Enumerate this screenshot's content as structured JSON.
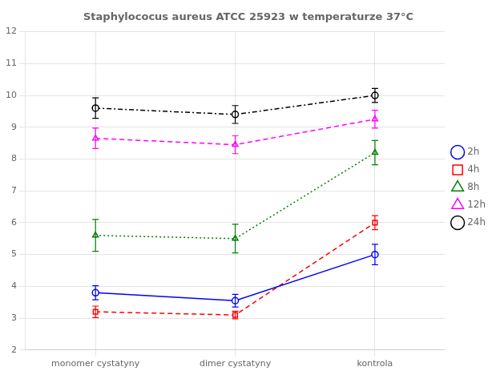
{
  "chart_data": {
    "type": "line",
    "title": "Staphylococus aureus ATCC 25923 w temperaturze 37°C",
    "categories": [
      "monomer cystatyny",
      "dimer cystatyny",
      "kontrola"
    ],
    "series": [
      {
        "name": "2h",
        "color": "#0000FF",
        "marker": "circle",
        "line_style": "solid",
        "values": [
          3.8,
          3.55,
          5.0
        ],
        "errors": [
          0.22,
          0.2,
          0.32
        ]
      },
      {
        "name": "4h",
        "color": "#FF0000",
        "marker": "square",
        "line_style": "dashed",
        "values": [
          3.2,
          3.1,
          6.0
        ],
        "errors": [
          0.18,
          0.12,
          0.22
        ]
      },
      {
        "name": "8h",
        "color": "#008000",
        "marker": "triangle",
        "line_style": "dotted",
        "values": [
          5.6,
          5.5,
          8.2
        ],
        "errors": [
          0.5,
          0.45,
          0.38
        ]
      },
      {
        "name": "12h",
        "color": "#FF00FF",
        "marker": "triangle",
        "line_style": "dashed",
        "values": [
          8.65,
          8.45,
          9.25
        ],
        "errors": [
          0.32,
          0.28,
          0.28
        ]
      },
      {
        "name": "24h",
        "color": "#000000",
        "marker": "circle",
        "line_style": "dashdot",
        "values": [
          9.6,
          9.4,
          10.0
        ],
        "errors": [
          0.32,
          0.28,
          0.22
        ]
      }
    ],
    "ylim": [
      2,
      12
    ],
    "yticks": [
      2,
      3,
      4,
      5,
      6,
      7,
      8,
      9,
      10,
      11,
      12
    ],
    "grid": true,
    "legend": "right"
  }
}
